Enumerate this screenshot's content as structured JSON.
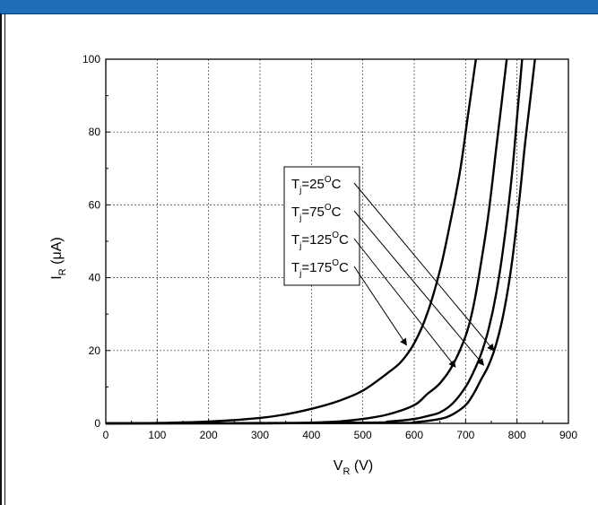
{
  "chart_data": {
    "type": "line",
    "title": "",
    "xlabel": {
      "main": "V",
      "sub": "R",
      "unit": " (V)"
    },
    "ylabel": {
      "main": "I",
      "sub": "R",
      "unit": " (μA)"
    },
    "xlim": [
      0,
      900
    ],
    "ylim": [
      0,
      100
    ],
    "xticks": [
      "0",
      "100",
      "200",
      "300",
      "400",
      "500",
      "600",
      "700",
      "800",
      "900"
    ],
    "yticks": [
      "0",
      "20",
      "40",
      "60",
      "80",
      "100"
    ],
    "grid": true,
    "series": [
      {
        "name": "Tj=25oC",
        "x": [
          0,
          100,
          200,
          300,
          350,
          400,
          450,
          500,
          550,
          575,
          600,
          625,
          650,
          670,
          690,
          705,
          720
        ],
        "y": [
          0,
          0.1,
          0.5,
          1.5,
          2.5,
          4,
          6,
          9,
          14,
          17,
          22,
          30,
          42,
          55,
          70,
          85,
          100
        ]
      },
      {
        "name": "Tj=75oC",
        "x": [
          0,
          300,
          400,
          450,
          500,
          550,
          600,
          625,
          650,
          675,
          700,
          715,
          730,
          745,
          760,
          770,
          780
        ],
        "y": [
          0,
          0,
          0.2,
          0.5,
          1.2,
          2.5,
          5,
          8,
          11,
          16,
          24,
          32,
          44,
          58,
          76,
          88,
          100
        ]
      },
      {
        "name": "Tj=125oC",
        "x": [
          0,
          500,
          550,
          600,
          625,
          650,
          675,
          700,
          715,
          730,
          745,
          760,
          775,
          790,
          800,
          810
        ],
        "y": [
          0,
          0.2,
          0.5,
          1.2,
          2,
          3,
          5.5,
          10,
          14,
          19,
          26,
          36,
          50,
          68,
          84,
          100
        ]
      },
      {
        "name": "Tj=175oC",
        "x": [
          0,
          550,
          600,
          650,
          675,
          700,
          715,
          730,
          745,
          760,
          775,
          790,
          805,
          815,
          825,
          835
        ],
        "y": [
          0,
          0.1,
          0.3,
          1.2,
          2.5,
          5,
          8,
          12,
          16,
          22,
          31,
          44,
          62,
          76,
          88,
          100
        ]
      }
    ],
    "annotations": [
      {
        "base": "T",
        "sub": "j",
        "main": "=25",
        "sup": "O",
        "unit": "C",
        "arrow_to": {
          "x": 755,
          "y": 20
        }
      },
      {
        "base": "T",
        "sub": "j",
        "main": "=75",
        "sup": "O",
        "unit": "C",
        "arrow_to": {
          "x": 735,
          "y": 16
        }
      },
      {
        "base": "T",
        "sub": "j",
        "main": "=125",
        "sup": "O",
        "unit": "C",
        "arrow_to": {
          "x": 680,
          "y": 15.5
        }
      },
      {
        "base": "T",
        "sub": "j",
        "main": "=175",
        "sup": "O",
        "unit": "C",
        "arrow_to": {
          "x": 585,
          "y": 21.5
        }
      }
    ]
  }
}
